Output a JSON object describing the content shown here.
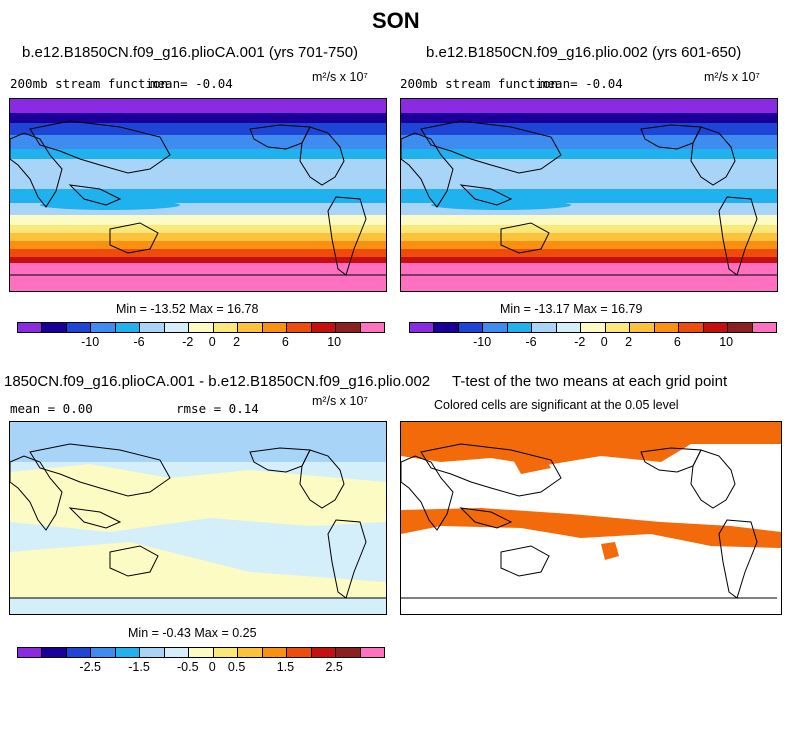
{
  "figure": {
    "title": "SON"
  },
  "panel1": {
    "title": "b.e12.B1850CN.f09_g16.plioCA.001 (yrs 701-750)",
    "left": "200mb stream function",
    "mean": "mean=  -0.04",
    "units": "m²/s x 10⁷",
    "stats": "Min = -13.52 Max =  16.78"
  },
  "panel2": {
    "title": "b.e12.B1850CN.f09_g16.plio.002 (yrs 601-650)",
    "left": "200mb stream function",
    "mean": "mean=  -0.04",
    "units": "m²/s x 10⁷",
    "stats": "Min = -13.17 Max =  16.79"
  },
  "panel3": {
    "title": "1850CN.f09_g16.plioCA.001 - b.e12.B1850CN.f09_g16.plio.002",
    "mean": "mean =   0.00",
    "rmse": "rmse =   0.14",
    "units": "m²/s x 10⁷",
    "stats": "Min = -0.43 Max =   0.25"
  },
  "panel4": {
    "title": "T-test of the two means at each grid point",
    "subtitle": "Colored cells are significant at the 0.05 level"
  },
  "colorbar_top": {
    "ticks": [
      "-10",
      "-6",
      "-2",
      "0",
      "2",
      "6",
      "10"
    ]
  },
  "colorbar_bottom": {
    "ticks": [
      "-2.5",
      "-1.5",
      "-0.5",
      "0",
      "0.5",
      "1.5",
      "2.5"
    ]
  },
  "colors": {
    "scale": [
      "#8a2be2",
      "#1a0099",
      "#1f45d6",
      "#3f8cf0",
      "#1fb2ee",
      "#a8d4f8",
      "#d4eefa",
      "#fdfbc4",
      "#fbe878",
      "#fcc23c",
      "#f9900f",
      "#ee4c0c",
      "#c80f0f",
      "#8c1f1f",
      "#ff70c0"
    ],
    "significant": "#f26a0a"
  }
}
